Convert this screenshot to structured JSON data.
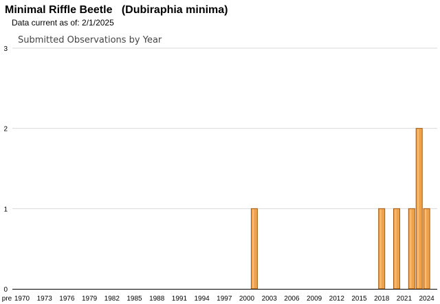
{
  "header": {
    "title": "Minimal Riffle Beetle   (Dubiraphia minima)",
    "data_date": "Data current as of: 2/1/2025"
  },
  "colors": {
    "bar_fill": "#f0a24a",
    "bar_stroke": "#a0580f",
    "bar_highlight": "#f8c585",
    "gridline": "#d9d9d9",
    "axis": "#000000",
    "title": "#444444"
  },
  "chart_data": {
    "type": "bar",
    "title": "Submitted Observations by Year",
    "xlabel": "",
    "ylabel": "",
    "ylim": [
      0,
      3
    ],
    "yticks": [
      0,
      1,
      2,
      3
    ],
    "grid": true,
    "categories": [
      "pre",
      "1970",
      "1971",
      "1972",
      "1973",
      "1974",
      "1975",
      "1976",
      "1977",
      "1978",
      "1979",
      "1980",
      "1981",
      "1982",
      "1983",
      "1984",
      "1985",
      "1986",
      "1987",
      "1988",
      "1989",
      "1990",
      "1991",
      "1992",
      "1993",
      "1994",
      "1995",
      "1996",
      "1997",
      "1998",
      "1999",
      "2000",
      "2001",
      "2002",
      "2003",
      "2004",
      "2005",
      "2006",
      "2007",
      "2008",
      "2009",
      "2010",
      "2011",
      "2012",
      "2013",
      "2014",
      "2015",
      "2016",
      "2017",
      "2018",
      "2019",
      "2020",
      "2021",
      "2022",
      "2023",
      "2024",
      "2025"
    ],
    "xtick_labels": [
      "pre",
      "1970",
      "1973",
      "1976",
      "1979",
      "1982",
      "1985",
      "1988",
      "1991",
      "1994",
      "1997",
      "2000",
      "2003",
      "2006",
      "2009",
      "2012",
      "2015",
      "2018",
      "2021",
      "2024"
    ],
    "values": [
      0,
      0,
      0,
      0,
      0,
      0,
      0,
      0,
      0,
      0,
      0,
      0,
      0,
      0,
      0,
      0,
      0,
      0,
      0,
      0,
      0,
      0,
      0,
      0,
      0,
      0,
      0,
      0,
      0,
      0,
      0,
      0,
      1,
      0,
      0,
      0,
      0,
      0,
      0,
      0,
      0,
      0,
      0,
      0,
      0,
      0,
      0,
      0,
      0,
      1,
      0,
      1,
      0,
      1,
      2,
      1,
      0
    ]
  }
}
